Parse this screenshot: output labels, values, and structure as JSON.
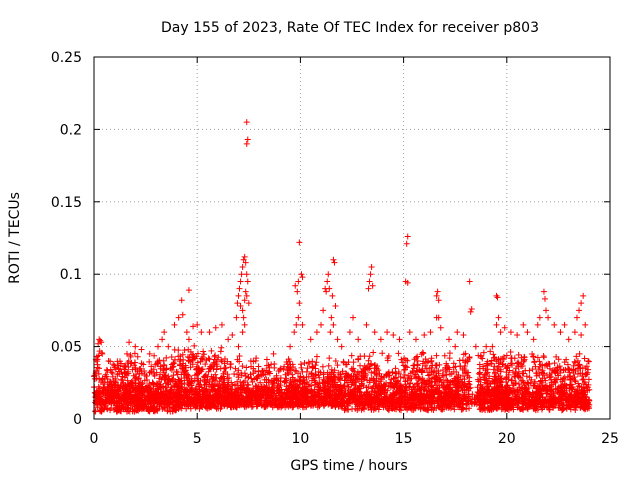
{
  "chart_data": {
    "type": "scatter",
    "title": "Day 155 of 2023, Rate Of TEC Index for receiver p803",
    "xlabel": "GPS time / hours",
    "ylabel": "ROTI / TECUs",
    "xlim": [
      0,
      25
    ],
    "ylim": [
      0,
      0.25
    ],
    "xticks": [
      0,
      5,
      10,
      15,
      20,
      25
    ],
    "xtick_labels": [
      "0",
      "5",
      "10",
      "15",
      "20",
      "25"
    ],
    "yticks": [
      0,
      0.05,
      0.1,
      0.15,
      0.2,
      0.25
    ],
    "ytick_labels": [
      "0",
      "0.05",
      "0.1",
      "0.15",
      "0.2",
      "0.25"
    ],
    "grid": true,
    "marker": "+",
    "color": "#ff0000",
    "series": [
      {
        "name": "ROTI",
        "points": [
          [
            0.2,
            0.052
          ],
          [
            0.25,
            0.055
          ],
          [
            0.3,
            0.054
          ],
          [
            0.35,
            0.053
          ],
          [
            0.4,
            0.045
          ],
          [
            0.15,
            0.04
          ],
          [
            1.6,
            0.045
          ],
          [
            1.7,
            0.053
          ],
          [
            2.0,
            0.05
          ],
          [
            2.3,
            0.048
          ],
          [
            2.7,
            0.045
          ],
          [
            3.1,
            0.05
          ],
          [
            3.3,
            0.055
          ],
          [
            3.4,
            0.06
          ],
          [
            3.6,
            0.05
          ],
          [
            3.9,
            0.065
          ],
          [
            4.1,
            0.07
          ],
          [
            4.3,
            0.072
          ],
          [
            4.25,
            0.082
          ],
          [
            4.5,
            0.06
          ],
          [
            4.6,
            0.055
          ],
          [
            4.8,
            0.064
          ],
          [
            4.6,
            0.089
          ],
          [
            5.0,
            0.065
          ],
          [
            5.2,
            0.06
          ],
          [
            5.6,
            0.06
          ],
          [
            5.9,
            0.063
          ],
          [
            6.2,
            0.065
          ],
          [
            6.5,
            0.055
          ],
          [
            6.7,
            0.058
          ],
          [
            6.9,
            0.07
          ],
          [
            6.95,
            0.08
          ],
          [
            7.0,
            0.085
          ],
          [
            7.05,
            0.09
          ],
          [
            7.1,
            0.095
          ],
          [
            7.15,
            0.1
          ],
          [
            7.2,
            0.105
          ],
          [
            7.25,
            0.11
          ],
          [
            7.3,
            0.112
          ],
          [
            7.35,
            0.108
          ],
          [
            7.4,
            0.1
          ],
          [
            7.45,
            0.095
          ],
          [
            7.2,
            0.075
          ],
          [
            7.25,
            0.07
          ],
          [
            7.3,
            0.082
          ],
          [
            7.35,
            0.088
          ],
          [
            7.1,
            0.078
          ],
          [
            7.4,
            0.085
          ],
          [
            7.5,
            0.08
          ],
          [
            7.3,
            0.065
          ],
          [
            7.2,
            0.06
          ],
          [
            7.4,
            0.205
          ],
          [
            7.45,
            0.193
          ],
          [
            7.4,
            0.19
          ],
          [
            7.0,
            0.05
          ],
          [
            8.7,
            0.045
          ],
          [
            9.5,
            0.05
          ],
          [
            9.7,
            0.06
          ],
          [
            9.8,
            0.065
          ],
          [
            9.9,
            0.07
          ],
          [
            9.75,
            0.092
          ],
          [
            9.85,
            0.088
          ],
          [
            9.9,
            0.095
          ],
          [
            10.05,
            0.1
          ],
          [
            10.1,
            0.098
          ],
          [
            9.95,
            0.08
          ],
          [
            10.1,
            0.065
          ],
          [
            9.95,
            0.122
          ],
          [
            10.5,
            0.055
          ],
          [
            10.8,
            0.06
          ],
          [
            11.0,
            0.065
          ],
          [
            11.1,
            0.075
          ],
          [
            11.2,
            0.09
          ],
          [
            11.25,
            0.088
          ],
          [
            11.3,
            0.095
          ],
          [
            11.35,
            0.1
          ],
          [
            11.4,
            0.09
          ],
          [
            11.55,
            0.085
          ],
          [
            11.6,
            0.11
          ],
          [
            11.65,
            0.108
          ],
          [
            11.7,
            0.078
          ],
          [
            11.5,
            0.07
          ],
          [
            11.6,
            0.065
          ],
          [
            11.45,
            0.06
          ],
          [
            11.8,
            0.055
          ],
          [
            12.0,
            0.05
          ],
          [
            12.4,
            0.06
          ],
          [
            12.55,
            0.07
          ],
          [
            12.8,
            0.055
          ],
          [
            13.2,
            0.065
          ],
          [
            13.3,
            0.09
          ],
          [
            13.35,
            0.095
          ],
          [
            13.4,
            0.1
          ],
          [
            13.45,
            0.105
          ],
          [
            13.5,
            0.092
          ],
          [
            13.6,
            0.06
          ],
          [
            13.9,
            0.055
          ],
          [
            14.2,
            0.06
          ],
          [
            14.5,
            0.058
          ],
          [
            14.8,
            0.055
          ],
          [
            15.1,
            0.095
          ],
          [
            15.2,
            0.094
          ],
          [
            15.15,
            0.121
          ],
          [
            15.2,
            0.126
          ],
          [
            15.3,
            0.06
          ],
          [
            15.6,
            0.055
          ],
          [
            16.0,
            0.058
          ],
          [
            16.3,
            0.06
          ],
          [
            16.6,
            0.085
          ],
          [
            16.65,
            0.088
          ],
          [
            16.7,
            0.082
          ],
          [
            16.6,
            0.07
          ],
          [
            16.8,
            0.063
          ],
          [
            16.7,
            0.07
          ],
          [
            17.2,
            0.055
          ],
          [
            17.5,
            0.05
          ],
          [
            17.6,
            0.06
          ],
          [
            17.9,
            0.058
          ],
          [
            18.2,
            0.095
          ],
          [
            18.3,
            0.076
          ],
          [
            18.25,
            0.074
          ],
          [
            18.5,
            0.05
          ],
          [
            19.0,
            0.05
          ],
          [
            19.3,
            0.05
          ],
          [
            19.5,
            0.085
          ],
          [
            19.55,
            0.084
          ],
          [
            19.6,
            0.07
          ],
          [
            19.5,
            0.065
          ],
          [
            19.7,
            0.06
          ],
          [
            19.9,
            0.063
          ],
          [
            20.2,
            0.06
          ],
          [
            20.5,
            0.058
          ],
          [
            20.8,
            0.065
          ],
          [
            21.0,
            0.06
          ],
          [
            21.3,
            0.055
          ],
          [
            21.5,
            0.065
          ],
          [
            21.6,
            0.07
          ],
          [
            21.8,
            0.088
          ],
          [
            21.85,
            0.083
          ],
          [
            21.9,
            0.075
          ],
          [
            22.0,
            0.07
          ],
          [
            22.3,
            0.065
          ],
          [
            22.6,
            0.06
          ],
          [
            22.8,
            0.065
          ],
          [
            23.0,
            0.055
          ],
          [
            23.3,
            0.06
          ],
          [
            23.4,
            0.07
          ],
          [
            23.5,
            0.075
          ],
          [
            23.6,
            0.08
          ],
          [
            23.7,
            0.085
          ],
          [
            23.8,
            0.065
          ],
          [
            23.6,
            0.058
          ]
        ],
        "bands": [
          {
            "x": [
              0.0,
              4.0
            ],
            "lo": 0.005,
            "hi": 0.048,
            "n": 650,
            "seed": 11
          },
          {
            "x": [
              4.0,
              6.2
            ],
            "lo": 0.007,
            "hi": 0.052,
            "n": 380,
            "seed": 23
          },
          {
            "x": [
              6.2,
              8.8
            ],
            "lo": 0.008,
            "hi": 0.045,
            "n": 330,
            "seed": 37
          },
          {
            "x": [
              8.8,
              12.0
            ],
            "lo": 0.008,
            "hi": 0.045,
            "n": 440,
            "seed": 41
          },
          {
            "x": [
              12.0,
              18.2
            ],
            "lo": 0.006,
            "hi": 0.05,
            "n": 880,
            "seed": 53
          },
          {
            "x": [
              18.6,
              24.0
            ],
            "lo": 0.006,
            "hi": 0.048,
            "n": 820,
            "seed": 67
          },
          {
            "x": [
              0.0,
              24.0
            ],
            "lo": 0.01,
            "hi": 0.025,
            "n": 1200,
            "seed": 79
          }
        ]
      }
    ]
  }
}
